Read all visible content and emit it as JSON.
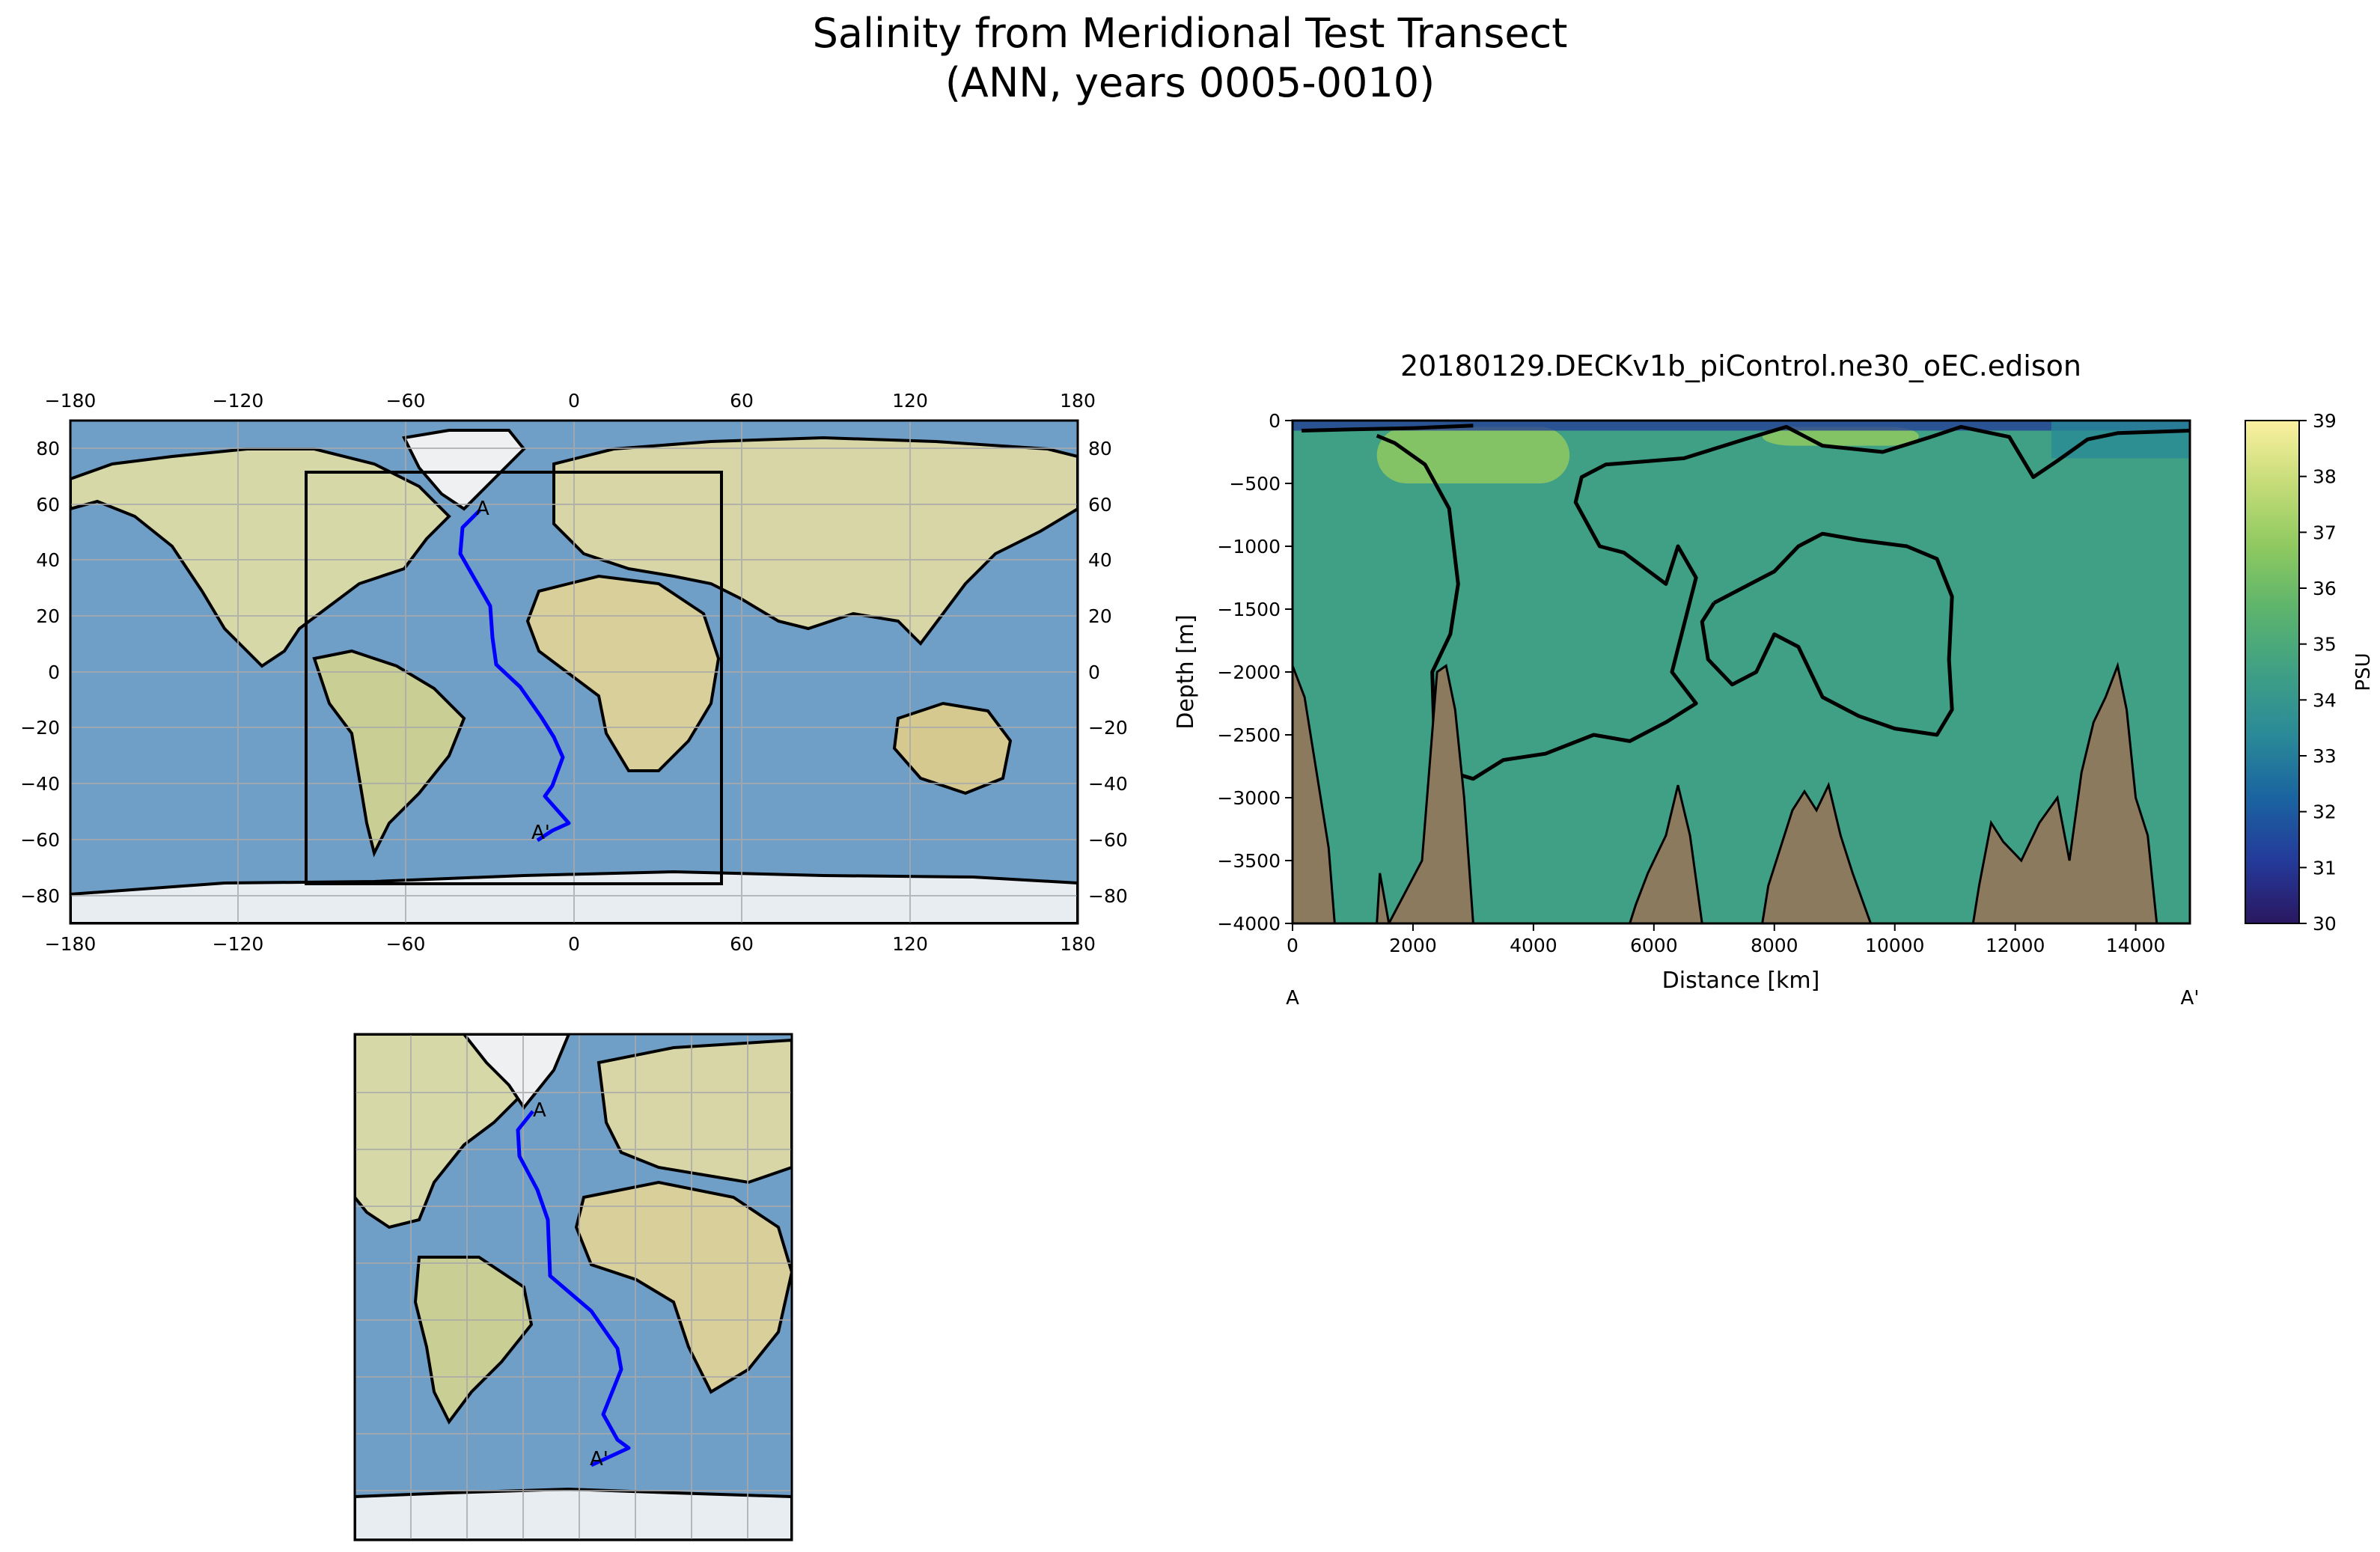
{
  "figure": {
    "title_line1": "Salinity from Meridional Test Transect",
    "title_line2": "(ANN, years 0005-0010)"
  },
  "global_map": {
    "lon_ticks": [
      "−180",
      "−120",
      "−60",
      "0",
      "60",
      "120",
      "180"
    ],
    "lat_ticks": [
      "80",
      "60",
      "40",
      "20",
      "0",
      "−20",
      "−40",
      "−60",
      "−80"
    ],
    "transect_start_label": "A",
    "transect_end_label": "A'",
    "transect_color": "#0000ff",
    "ocean_color": "#6f9ec7",
    "land_color": "#d6d8a8"
  },
  "inset_map": {
    "transect_start_label": "A",
    "transect_end_label": "A'"
  },
  "chart_data": {
    "type": "heatmap",
    "title": "20180129.DECKv1b_piControl.ne30_oEC.edison",
    "xlabel": "Distance [km]",
    "ylabel": "Depth [m]",
    "xlim": [
      0,
      14900
    ],
    "ylim": [
      -4000,
      0
    ],
    "x_ticks": [
      0,
      2000,
      4000,
      6000,
      8000,
      10000,
      12000,
      14000
    ],
    "y_ticks": [
      0,
      -500,
      -1000,
      -1500,
      -2000,
      -2500,
      -3000,
      -3500,
      -4000
    ],
    "start_label": "A",
    "end_label": "A'",
    "colorbar": {
      "label": "PSU",
      "ticks": [
        30,
        31,
        32,
        33,
        34,
        35,
        36,
        37,
        38,
        39
      ],
      "range": [
        30,
        39
      ],
      "colors": [
        "#2a1760",
        "#243a9a",
        "#1a64a0",
        "#2a8a98",
        "#3fa085",
        "#5cb46c",
        "#8fc960",
        "#c5dc78",
        "#fbf0a0"
      ]
    },
    "background_salinity": 34.9,
    "bathymetry_color": "#8c7a5e",
    "contour_levels": [
      35
    ],
    "bathymetry_profile": [
      [
        0,
        -1950
      ],
      [
        200,
        -2200
      ],
      [
        400,
        -2800
      ],
      [
        600,
        -3400
      ],
      [
        700,
        -4000
      ],
      [
        1400,
        -4000
      ],
      [
        1450,
        -3600
      ],
      [
        1600,
        -4000
      ],
      [
        2150,
        -3500
      ],
      [
        2300,
        -2600
      ],
      [
        2400,
        -2000
      ],
      [
        2550,
        -1950
      ],
      [
        2700,
        -2300
      ],
      [
        2850,
        -3000
      ],
      [
        3000,
        -4000
      ],
      [
        5600,
        -4000
      ],
      [
        5700,
        -3850
      ],
      [
        5900,
        -3600
      ],
      [
        6200,
        -3300
      ],
      [
        6400,
        -2900
      ],
      [
        6600,
        -3300
      ],
      [
        6800,
        -4000
      ],
      [
        7800,
        -4000
      ],
      [
        7900,
        -3700
      ],
      [
        8100,
        -3400
      ],
      [
        8300,
        -3100
      ],
      [
        8500,
        -2950
      ],
      [
        8700,
        -3100
      ],
      [
        8900,
        -2900
      ],
      [
        9100,
        -3300
      ],
      [
        9300,
        -3600
      ],
      [
        9600,
        -4000
      ],
      [
        11300,
        -4000
      ],
      [
        11400,
        -3700
      ],
      [
        11600,
        -3200
      ],
      [
        11800,
        -3350
      ],
      [
        12100,
        -3500
      ],
      [
        12400,
        -3200
      ],
      [
        12700,
        -3000
      ],
      [
        12900,
        -3500
      ],
      [
        13100,
        -2800
      ],
      [
        13300,
        -2400
      ],
      [
        13500,
        -2200
      ],
      [
        13700,
        -1950
      ],
      [
        13850,
        -2300
      ],
      [
        14000,
        -3000
      ],
      [
        14200,
        -3300
      ],
      [
        14350,
        -4000
      ]
    ],
    "contour_lines": [
      [
        [
          1400,
          -120
        ],
        [
          1700,
          -180
        ],
        [
          2200,
          -350
        ],
        [
          2600,
          -700
        ],
        [
          2750,
          -1300
        ],
        [
          2620,
          -1700
        ],
        [
          2320,
          -2000
        ],
        [
          2350,
          -2450
        ],
        [
          2650,
          -2800
        ],
        [
          3000,
          -2850
        ],
        [
          3500,
          -2700
        ],
        [
          4200,
          -2650
        ],
        [
          5000,
          -2500
        ],
        [
          5600,
          -2550
        ],
        [
          6200,
          -2400
        ],
        [
          6700,
          -2250
        ],
        [
          6300,
          -2000
        ],
        [
          6700,
          -1250
        ],
        [
          6400,
          -1000
        ],
        [
          6200,
          -1300
        ],
        [
          5500,
          -1050
        ],
        [
          5100,
          -1000
        ],
        [
          4700,
          -650
        ],
        [
          4800,
          -450
        ],
        [
          5200,
          -350
        ],
        [
          6500,
          -300
        ],
        [
          7500,
          -150
        ],
        [
          8200,
          -50
        ],
        [
          8800,
          -200
        ],
        [
          9800,
          -250
        ],
        [
          10600,
          -130
        ],
        [
          11100,
          -50
        ],
        [
          11900,
          -130
        ],
        [
          12300,
          -450
        ],
        [
          12700,
          -320
        ],
        [
          13200,
          -150
        ],
        [
          13700,
          -100
        ],
        [
          14900,
          -80
        ]
      ],
      [
        [
          7000,
          -1450
        ],
        [
          7600,
          -1300
        ],
        [
          8000,
          -1200
        ],
        [
          8400,
          -1000
        ],
        [
          8800,
          -900
        ],
        [
          9400,
          -950
        ],
        [
          10200,
          -1000
        ],
        [
          10700,
          -1100
        ],
        [
          10950,
          -1400
        ],
        [
          10900,
          -1900
        ],
        [
          10950,
          -2300
        ],
        [
          10700,
          -2500
        ],
        [
          10000,
          -2450
        ],
        [
          9400,
          -2350
        ],
        [
          8800,
          -2200
        ],
        [
          8400,
          -1800
        ],
        [
          8000,
          -1700
        ],
        [
          7700,
          -2000
        ],
        [
          7300,
          -2100
        ],
        [
          6900,
          -1900
        ],
        [
          6800,
          -1600
        ],
        [
          7000,
          -1450
        ]
      ],
      [
        [
          150,
          -80
        ],
        [
          1000,
          -70
        ],
        [
          2000,
          -60
        ],
        [
          3000,
          -40
        ]
      ]
    ],
    "fresh_patches": [
      {
        "x0": 0,
        "x1": 14900,
        "depth": -80,
        "salinity": 31.5
      },
      {
        "x0": 12600,
        "x1": 14900,
        "depth": -300,
        "salinity": 33.5
      }
    ],
    "salty_patches": [
      {
        "x0": 1400,
        "x1": 4600,
        "depth_top": -50,
        "depth_bottom": -500,
        "salinity": 36.3
      },
      {
        "x0": 7800,
        "x1": 10400,
        "depth_top": -50,
        "depth_bottom": -200,
        "salinity": 36.2
      }
    ]
  }
}
